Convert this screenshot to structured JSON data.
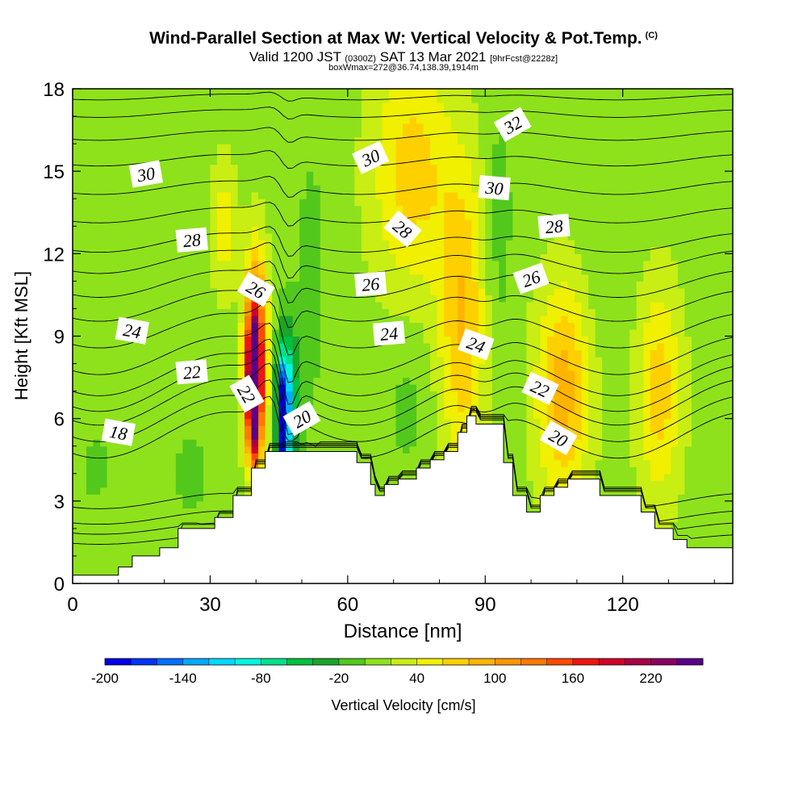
{
  "header": {
    "title": "Wind-Parallel Section at Max W: Vertical Velocity & Pot.Temp.",
    "copyright": "(C)",
    "valid_prefix": "Valid 1200 JST",
    "valid_utc": "(0300Z)",
    "valid_date": "SAT 13 Mar 2021",
    "forecast": "[9hrFcst@2228z]",
    "box_info": "boxWmax=272@36.74,138.39,1914m"
  },
  "chart_data": {
    "type": "heatmap",
    "xlabel": "Distance [nm]",
    "ylabel": "Height [Kft MSL]",
    "xlim": [
      0,
      144
    ],
    "ylim": [
      0,
      18
    ],
    "x_ticks": [
      0,
      30,
      60,
      90,
      120
    ],
    "y_ticks": [
      0,
      3,
      6,
      9,
      12,
      15,
      18
    ],
    "colorbar": {
      "label": "Vertical Velocity [cm/s]",
      "min": -200,
      "step": 20,
      "tick_labels": [
        "-200",
        "-140",
        "-80",
        "-20",
        "40",
        "100",
        "160",
        "220"
      ],
      "colors": [
        "#0000e6",
        "#0035f2",
        "#0070ff",
        "#00aaff",
        "#00d8ff",
        "#00f5e0",
        "#00e08c",
        "#00c040",
        "#1aa628",
        "#52c81c",
        "#8ee21c",
        "#c8ee14",
        "#f0f000",
        "#ffd000",
        "#ffb400",
        "#ff9600",
        "#ff7800",
        "#ff4800",
        "#f01414",
        "#d20028",
        "#aa0046",
        "#8c0064",
        "#5a0087"
      ]
    },
    "terrain": {
      "x": [
        0,
        10,
        10,
        13,
        13,
        19,
        19,
        23,
        23,
        31,
        31,
        35,
        35,
        39,
        39,
        42,
        42,
        46,
        46,
        62,
        62,
        65,
        65,
        66,
        66,
        68,
        68,
        71,
        71,
        75,
        75,
        78,
        78,
        81,
        81,
        84,
        84,
        86,
        86,
        88,
        88,
        94,
        94,
        96,
        96,
        99,
        99,
        102,
        102,
        105,
        105,
        108,
        108,
        115,
        115,
        124,
        124,
        127,
        127,
        131,
        131,
        134,
        134,
        137,
        137,
        140,
        140,
        143,
        143,
        144
      ],
      "y": [
        0.3,
        0.3,
        0.6,
        0.6,
        1.0,
        1.0,
        1.3,
        1.3,
        2.0,
        2.0,
        2.4,
        2.4,
        3.2,
        3.2,
        4.2,
        4.2,
        4.8,
        4.8,
        4.8,
        4.8,
        4.4,
        4.4,
        3.6,
        3.6,
        3.2,
        3.2,
        3.6,
        3.6,
        3.8,
        3.8,
        4.2,
        4.2,
        4.5,
        4.5,
        4.8,
        4.8,
        5.5,
        5.5,
        6.1,
        6.1,
        5.8,
        5.8,
        4.4,
        4.4,
        3.2,
        3.2,
        2.6,
        2.6,
        3.2,
        3.2,
        3.5,
        3.5,
        3.8,
        3.8,
        3.2,
        3.2,
        2.6,
        2.6,
        2.0,
        2.0,
        1.6,
        1.6,
        1.3,
        1.3,
        1.3,
        1.3,
        1.3,
        1.3,
        1.3,
        1.3
      ]
    },
    "vertical_velocity_cells": [
      {
        "x": 74,
        "y": 15.0,
        "rx": 9,
        "ry": 4.5,
        "w": 60
      },
      {
        "x": 85,
        "y": 9.5,
        "rx": 5,
        "ry": 5.5,
        "w": 70
      },
      {
        "x": 107,
        "y": 7.0,
        "rx": 6,
        "ry": 4.0,
        "w": 80
      },
      {
        "x": 128,
        "y": 7.0,
        "rx": 5,
        "ry": 4.0,
        "w": 60
      },
      {
        "x": 33,
        "y": 13.0,
        "rx": 3,
        "ry": 2.5,
        "w": 40
      },
      {
        "x": 40,
        "y": 8.2,
        "rx": 2.5,
        "ry": 3.5,
        "w": 180
      },
      {
        "x": 39.5,
        "y": 7.0,
        "rx": 1.2,
        "ry": 2.2,
        "w": 270
      },
      {
        "x": 46.5,
        "y": 6.5,
        "rx": 2.5,
        "ry": 2.8,
        "w": -120
      },
      {
        "x": 46,
        "y": 6.0,
        "rx": 0.9,
        "ry": 1.6,
        "w": -200
      },
      {
        "x": 52,
        "y": 11.0,
        "rx": 3,
        "ry": 5.0,
        "w": -20
      },
      {
        "x": 73,
        "y": 6.5,
        "rx": 5,
        "ry": 3.0,
        "w": -15
      },
      {
        "x": 93,
        "y": 13.0,
        "rx": 3,
        "ry": 5.0,
        "w": -20
      },
      {
        "x": 116,
        "y": 12.0,
        "rx": 5,
        "ry": 4.0,
        "w": -10
      },
      {
        "x": 26,
        "y": 4.0,
        "rx": 5,
        "ry": 2.0,
        "w": -15
      },
      {
        "x": 5,
        "y": 4.2,
        "rx": 4,
        "ry": 1.5,
        "w": -15
      }
    ],
    "theta_contours": [
      {
        "value": 14,
        "base": 1.6,
        "amp": 0.25
      },
      {
        "value": 15,
        "base": 2.0,
        "amp": 0.3
      },
      {
        "value": 16,
        "base": 2.4,
        "amp": 0.35
      },
      {
        "value": 17,
        "base": 3.0,
        "amp": 0.4
      },
      {
        "value": 18,
        "base": 5.4,
        "amp": 1.2
      },
      {
        "value": 19,
        "base": 6.0,
        "amp": 1.2
      },
      {
        "value": 20,
        "base": 6.6,
        "amp": 1.2
      },
      {
        "value": 21,
        "base": 7.1,
        "amp": 1.2
      },
      {
        "value": 22,
        "base": 7.6,
        "amp": 1.1
      },
      {
        "value": 23,
        "base": 8.3,
        "amp": 1.0
      },
      {
        "value": 24,
        "base": 9.2,
        "amp": 0.9
      },
      {
        "value": 25,
        "base": 10.1,
        "amp": 0.8
      },
      {
        "value": 26,
        "base": 10.9,
        "amp": 0.7
      },
      {
        "value": 27,
        "base": 11.7,
        "amp": 0.6
      },
      {
        "value": 28,
        "base": 12.4,
        "amp": 0.5
      },
      {
        "value": 29,
        "base": 13.4,
        "amp": 0.4
      },
      {
        "value": 30,
        "base": 14.4,
        "amp": 0.35
      },
      {
        "value": 31,
        "base": 15.4,
        "amp": 0.3
      },
      {
        "value": 32,
        "base": 16.3,
        "amp": 0.25
      },
      {
        "value": 33,
        "base": 17.1,
        "amp": 0.2
      },
      {
        "value": 34,
        "base": 17.7,
        "amp": 0.15
      }
    ],
    "contour_labels": [
      {
        "text": "30",
        "x": 16,
        "y": 14.9,
        "rot": -10
      },
      {
        "text": "28",
        "x": 26,
        "y": 12.5,
        "rot": -5
      },
      {
        "text": "26",
        "x": 40,
        "y": 10.7,
        "rot": 30
      },
      {
        "text": "24",
        "x": 13,
        "y": 9.2,
        "rot": 10
      },
      {
        "text": "22",
        "x": 26,
        "y": 7.7,
        "rot": -5
      },
      {
        "text": "22",
        "x": 38,
        "y": 6.9,
        "rot": 60
      },
      {
        "text": "18",
        "x": 10,
        "y": 5.5,
        "rot": 10
      },
      {
        "text": "20",
        "x": 50,
        "y": 6.0,
        "rot": -30
      },
      {
        "text": "30",
        "x": 65,
        "y": 15.5,
        "rot": -25
      },
      {
        "text": "28",
        "x": 72,
        "y": 12.9,
        "rot": 40
      },
      {
        "text": "26",
        "x": 65,
        "y": 10.9,
        "rot": -5
      },
      {
        "text": "24",
        "x": 69,
        "y": 9.1,
        "rot": -5
      },
      {
        "text": "32",
        "x": 96,
        "y": 16.7,
        "rot": -30
      },
      {
        "text": "30",
        "x": 92,
        "y": 14.4,
        "rot": 5
      },
      {
        "text": "28",
        "x": 105,
        "y": 13.0,
        "rot": -5
      },
      {
        "text": "26",
        "x": 100,
        "y": 11.1,
        "rot": -20
      },
      {
        "text": "24",
        "x": 88,
        "y": 8.7,
        "rot": 20
      },
      {
        "text": "22",
        "x": 102,
        "y": 7.1,
        "rot": 25
      },
      {
        "text": "20",
        "x": 106,
        "y": 5.3,
        "rot": 30
      }
    ]
  }
}
